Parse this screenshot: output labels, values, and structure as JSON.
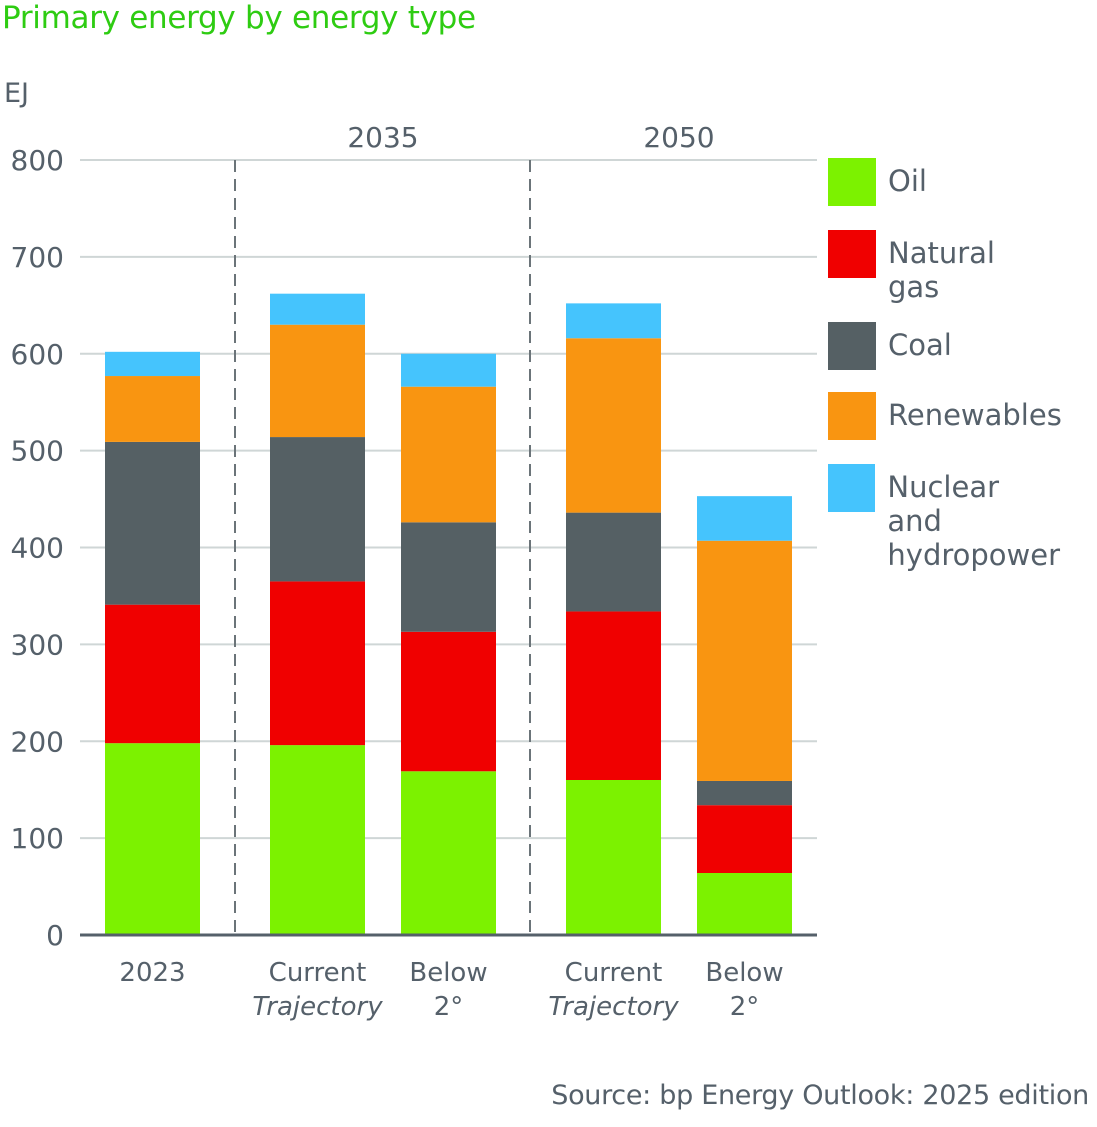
{
  "chart_data": {
    "type": "bar",
    "stacked": true,
    "title": "Primary energy by energy type",
    "ylabel": "EJ",
    "xlabel": "",
    "ylim": [
      0,
      800
    ],
    "yticks": [
      0,
      100,
      200,
      300,
      400,
      500,
      600,
      700,
      800
    ],
    "grid": true,
    "legend_position": "right",
    "groups": [
      {
        "label": "",
        "members": [
          0
        ]
      },
      {
        "label": "2035",
        "members": [
          1,
          2
        ]
      },
      {
        "label": "2050",
        "members": [
          3,
          4
        ]
      }
    ],
    "categories": [
      {
        "line1": "2023",
        "line2": "",
        "line2_italic": false
      },
      {
        "line1": "Current",
        "line2": "Trajectory",
        "line2_italic": true
      },
      {
        "line1": "Below",
        "line2": "2°",
        "line2_italic": false
      },
      {
        "line1": "Current",
        "line2": "Trajectory",
        "line2_italic": true
      },
      {
        "line1": "Below",
        "line2": "2°",
        "line2_italic": false
      }
    ],
    "series": [
      {
        "name": "Oil",
        "legend_label": "Oil",
        "color": "#7cf200",
        "values": [
          198,
          196,
          169,
          160,
          64
        ]
      },
      {
        "name": "Natural gas",
        "legend_label": "Natural\ngas",
        "color": "#f00000",
        "values": [
          143,
          169,
          144,
          174,
          70
        ]
      },
      {
        "name": "Coal",
        "legend_label": "Coal",
        "color": "#556064",
        "values": [
          168,
          149,
          113,
          102,
          25
        ]
      },
      {
        "name": "Renewables",
        "legend_label": "Renewables",
        "color": "#f99511",
        "values": [
          68,
          116,
          140,
          180,
          248
        ]
      },
      {
        "name": "Nuclear and hydropower",
        "legend_label": "Nuclear and\nhydropower",
        "color": "#45c4fd",
        "values": [
          25,
          32,
          34,
          36,
          46
        ]
      }
    ],
    "source": "Source: bp Energy Outlook: 2025 edition"
  }
}
